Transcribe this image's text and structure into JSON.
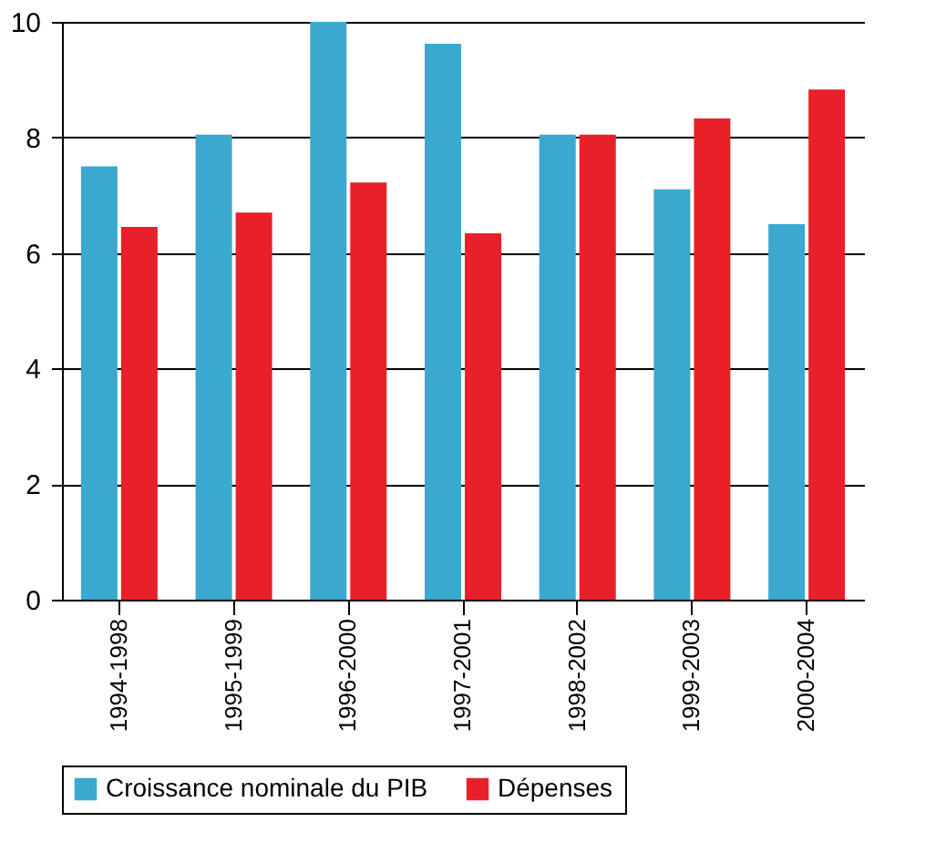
{
  "chart_data": {
    "type": "bar",
    "categories": [
      "1994-1998",
      "1995-1999",
      "1996-2000",
      "1997-2001",
      "1998-2002",
      "1999-2003",
      "2000-2004"
    ],
    "series": [
      {
        "name": "Croissance nominale du PIB",
        "color": "#3aa8cf",
        "values": [
          7.5,
          8.05,
          10,
          9.62,
          8.05,
          7.1,
          6.5
        ]
      },
      {
        "name": "Dépenses",
        "color": "#e8202a",
        "values": [
          6.45,
          6.7,
          7.22,
          6.34,
          8.05,
          8.33,
          8.83
        ]
      }
    ],
    "ylim": [
      0,
      10
    ],
    "yticks": [
      0,
      2,
      4,
      6,
      8,
      10
    ],
    "grid": "y",
    "legend": "bottom"
  }
}
